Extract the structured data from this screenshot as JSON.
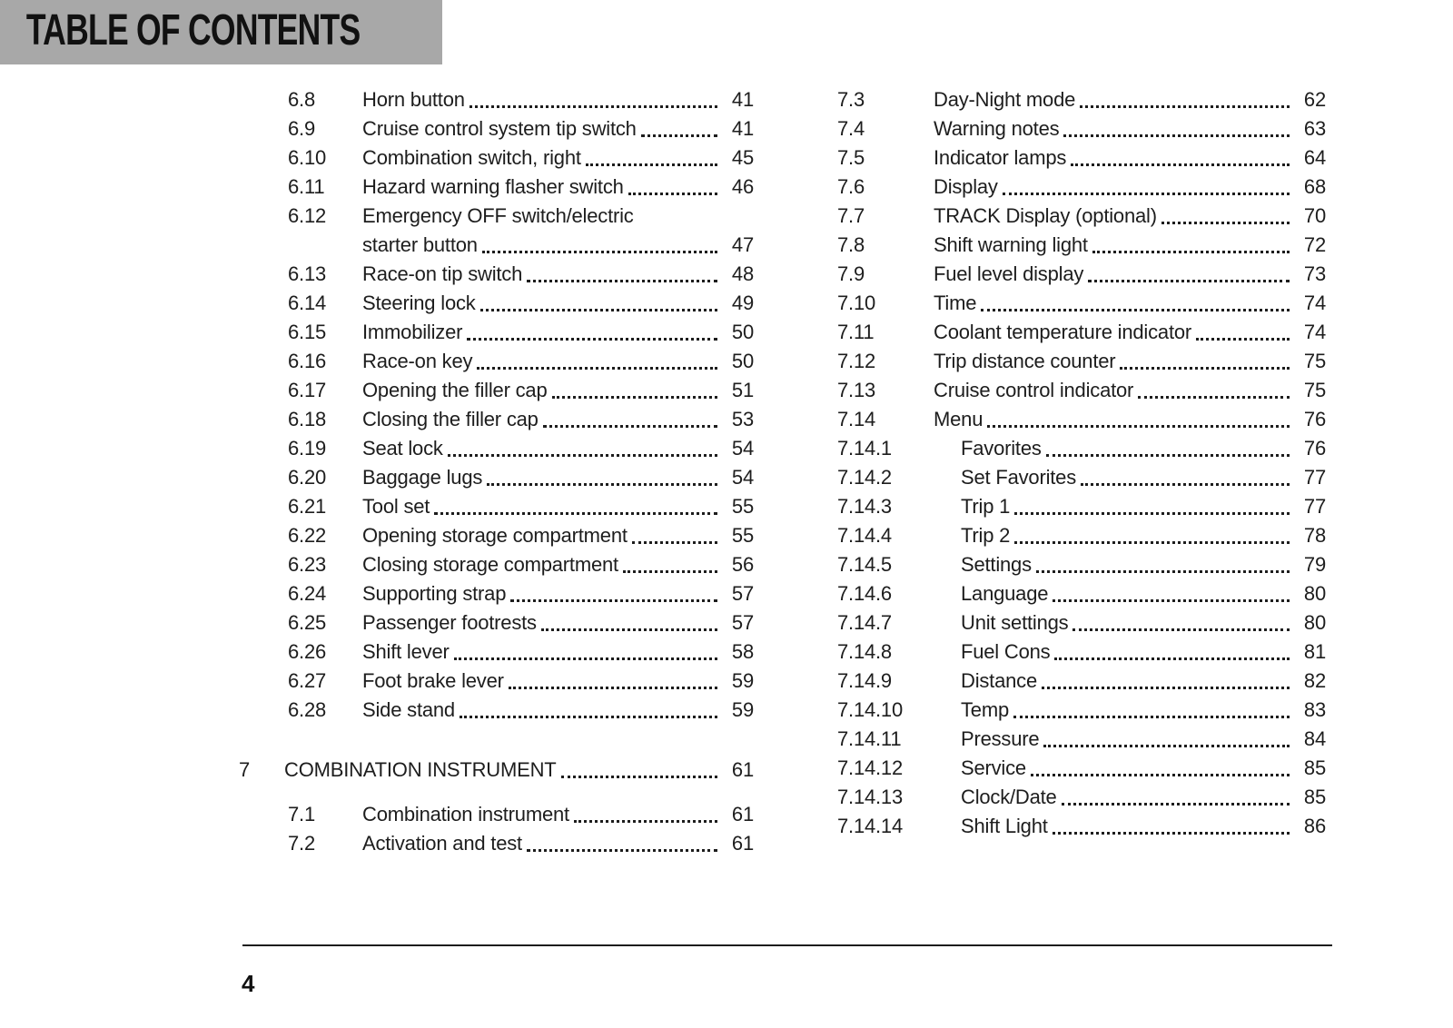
{
  "header": {
    "title": "TABLE OF CONTENTS",
    "background_color": "#a8a8a8"
  },
  "colors": {
    "text": "#1d1d1d",
    "header_background": "#a8a8a8",
    "rule": "#1d1d1d"
  },
  "toc": {
    "columns": {
      "left": [
        {
          "num": "6.8",
          "title": "Horn button",
          "page": "41"
        },
        {
          "num": "6.9",
          "title": "Cruise control system tip switch",
          "page": "41"
        },
        {
          "num": "6.10",
          "title": "Combination switch, right",
          "page": "45"
        },
        {
          "num": "6.11",
          "title": "Hazard warning flasher switch",
          "page": "46"
        },
        {
          "num": "6.12",
          "title": "Emergency OFF switch/electric\nstarter button",
          "page": "47"
        },
        {
          "num": "6.13",
          "title": "Race-on tip switch",
          "page": "48"
        },
        {
          "num": "6.14",
          "title": "Steering lock",
          "page": "49"
        },
        {
          "num": "6.15",
          "title": "Immobilizer",
          "page": "50"
        },
        {
          "num": "6.16",
          "title": "Race-on key",
          "page": "50"
        },
        {
          "num": "6.17",
          "title": "Opening the filler cap",
          "page": "51"
        },
        {
          "num": "6.18",
          "title": "Closing the filler cap",
          "page": "53"
        },
        {
          "num": "6.19",
          "title": "Seat lock",
          "page": "54"
        },
        {
          "num": "6.20",
          "title": "Baggage lugs",
          "page": "54"
        },
        {
          "num": "6.21",
          "title": "Tool set",
          "page": "55"
        },
        {
          "num": "6.22",
          "title": "Opening storage compartment",
          "page": "55"
        },
        {
          "num": "6.23",
          "title": "Closing storage compartment",
          "page": "56"
        },
        {
          "num": "6.24",
          "title": "Supporting strap",
          "page": "57"
        },
        {
          "num": "6.25",
          "title": "Passenger footrests",
          "page": "57"
        },
        {
          "num": "6.26",
          "title": "Shift lever",
          "page": "58"
        },
        {
          "num": "6.27",
          "title": "Foot brake lever",
          "page": "59"
        },
        {
          "num": "6.28",
          "title": "Side stand",
          "page": "59"
        },
        {
          "num": "7",
          "title": "COMBINATION INSTRUMENT",
          "page": "61"
        },
        {
          "num": "7.1",
          "title": "Combination instrument",
          "page": "61"
        },
        {
          "num": "7.2",
          "title": "Activation and test",
          "page": "61"
        }
      ],
      "right": [
        {
          "num": "7.3",
          "title": "Day-Night mode",
          "page": "62"
        },
        {
          "num": "7.4",
          "title": "Warning notes",
          "page": "63"
        },
        {
          "num": "7.5",
          "title": "Indicator lamps",
          "page": "64"
        },
        {
          "num": "7.6",
          "title": "Display",
          "page": "68"
        },
        {
          "num": "7.7",
          "title": "TRACK Display (optional)",
          "page": "70"
        },
        {
          "num": "7.8",
          "title": "Shift warning light",
          "page": "72"
        },
        {
          "num": "7.9",
          "title": "Fuel level display",
          "page": "73"
        },
        {
          "num": "7.10",
          "title": "Time",
          "page": "74"
        },
        {
          "num": "7.11",
          "title": "Coolant temperature indicator",
          "page": "74"
        },
        {
          "num": "7.12",
          "title": "Trip distance counter",
          "page": "75"
        },
        {
          "num": "7.13",
          "title": "Cruise control indicator",
          "page": "75"
        },
        {
          "num": "7.14",
          "title": "Menu",
          "page": "76"
        },
        {
          "num": "7.14.1",
          "title": "Favorites",
          "page": "76"
        },
        {
          "num": "7.14.2",
          "title": "Set Favorites",
          "page": "77"
        },
        {
          "num": "7.14.3",
          "title": "Trip 1",
          "page": "77"
        },
        {
          "num": "7.14.4",
          "title": "Trip 2",
          "page": "78"
        },
        {
          "num": "7.14.5",
          "title": "Settings",
          "page": "79"
        },
        {
          "num": "7.14.6",
          "title": "Language",
          "page": "80"
        },
        {
          "num": "7.14.7",
          "title": "Unit settings",
          "page": "80"
        },
        {
          "num": "7.14.8",
          "title": "Fuel Cons",
          "page": "81"
        },
        {
          "num": "7.14.9",
          "title": "Distance",
          "page": "82"
        },
        {
          "num": "7.14.10",
          "title": "Temp",
          "page": "83"
        },
        {
          "num": "7.14.11",
          "title": "Pressure",
          "page": "84"
        },
        {
          "num": "7.14.12",
          "title": "Service",
          "page": "85"
        },
        {
          "num": "7.14.13",
          "title": "Clock/Date",
          "page": "85"
        },
        {
          "num": "7.14.14",
          "title": "Shift Light",
          "page": "86"
        }
      ]
    }
  },
  "footer": {
    "page_number": "4"
  }
}
